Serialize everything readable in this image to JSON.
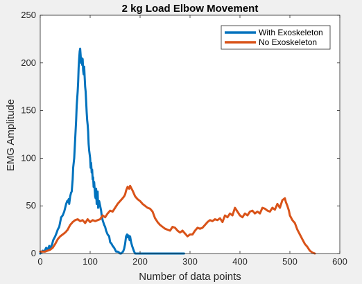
{
  "chart_data": {
    "type": "line",
    "title": "2 kg Load Elbow Movement",
    "xlabel": "Number of data points",
    "ylabel": "EMG Amplitude",
    "xlim": [
      0,
      600
    ],
    "ylim": [
      0,
      250
    ],
    "xticks": [
      "0",
      "100",
      "200",
      "300",
      "400",
      "500",
      "600"
    ],
    "yticks": [
      "0",
      "50",
      "100",
      "150",
      "200",
      "250"
    ],
    "grid": false,
    "legend_position": "top-right",
    "series": [
      {
        "name": "With Exoskeleton",
        "color": "#0072BD",
        "x": [
          0,
          5,
          8,
          12,
          15,
          18,
          20,
          24,
          26,
          30,
          33,
          35,
          38,
          40,
          42,
          45,
          48,
          50,
          52,
          54,
          55,
          57,
          58,
          60,
          62,
          63,
          65,
          66,
          68,
          70,
          72,
          73,
          75,
          76,
          77,
          78,
          79,
          80,
          81,
          82,
          83,
          84,
          85,
          86,
          87,
          88,
          89,
          90,
          91,
          92,
          93,
          94,
          95,
          96,
          97,
          98,
          100,
          101,
          102,
          103,
          104,
          105,
          106,
          107,
          108,
          110,
          111,
          112,
          113,
          115,
          116,
          118,
          120,
          122,
          123,
          125,
          128,
          130,
          132,
          135,
          138,
          140,
          143,
          145,
          148,
          150,
          152,
          155,
          158,
          160,
          162,
          164,
          166,
          168,
          170,
          172,
          174,
          175,
          177,
          179,
          180,
          182,
          184,
          186,
          188,
          190,
          200,
          220,
          250,
          270,
          288
        ],
        "y": [
          0,
          3,
          2,
          6,
          4,
          8,
          5,
          10,
          14,
          18,
          22,
          25,
          28,
          33,
          38,
          40,
          44,
          48,
          52,
          55,
          54,
          57,
          52,
          60,
          64,
          65,
          78,
          90,
          100,
          120,
          140,
          155,
          170,
          180,
          195,
          205,
          212,
          215,
          208,
          200,
          205,
          198,
          204,
          192,
          188,
          196,
          185,
          175,
          170,
          160,
          148,
          140,
          135,
          128,
          115,
          108,
          100,
          90,
          95,
          85,
          88,
          78,
          80,
          70,
          75,
          60,
          58,
          68,
          52,
          65,
          48,
          55,
          50,
          45,
          40,
          35,
          30,
          28,
          24,
          20,
          18,
          12,
          10,
          8,
          6,
          4,
          2,
          2,
          1,
          0,
          0,
          1,
          2,
          5,
          10,
          18,
          20,
          17,
          19,
          14,
          18,
          12,
          8,
          5,
          2,
          0,
          0,
          0,
          0,
          0,
          0
        ]
      },
      {
        "name": "No Exoskeleton",
        "color": "#D95319",
        "x": [
          0,
          10,
          20,
          25,
          30,
          35,
          40,
          45,
          50,
          55,
          60,
          65,
          70,
          75,
          80,
          85,
          90,
          95,
          100,
          105,
          110,
          115,
          120,
          125,
          130,
          135,
          140,
          145,
          150,
          155,
          160,
          165,
          168,
          170,
          172,
          175,
          178,
          180,
          182,
          185,
          190,
          195,
          200,
          205,
          210,
          215,
          220,
          225,
          230,
          235,
          240,
          245,
          250,
          255,
          260,
          265,
          270,
          275,
          280,
          285,
          290,
          295,
          300,
          305,
          310,
          315,
          320,
          325,
          330,
          335,
          340,
          345,
          350,
          355,
          360,
          365,
          370,
          375,
          380,
          385,
          390,
          395,
          400,
          405,
          410,
          415,
          420,
          425,
          430,
          435,
          440,
          445,
          450,
          455,
          460,
          465,
          470,
          475,
          480,
          485,
          490,
          492,
          495,
          498,
          500,
          505,
          510,
          515,
          520,
          525,
          530,
          535,
          540,
          545,
          550
        ],
        "y": [
          2,
          2,
          4,
          6,
          10,
          15,
          18,
          20,
          22,
          25,
          30,
          33,
          35,
          36,
          34,
          35,
          32,
          36,
          33,
          35,
          34,
          35,
          36,
          40,
          38,
          42,
          45,
          44,
          48,
          52,
          55,
          58,
          60,
          62,
          66,
          70,
          68,
          71,
          69,
          66,
          60,
          57,
          55,
          52,
          50,
          48,
          47,
          44,
          37,
          33,
          30,
          28,
          26,
          25,
          24,
          28,
          27,
          24,
          22,
          24,
          21,
          18,
          20,
          20,
          24,
          27,
          26,
          27,
          30,
          33,
          35,
          34,
          36,
          35,
          37,
          33,
          40,
          38,
          42,
          40,
          48,
          44,
          40,
          38,
          42,
          40,
          44,
          45,
          42,
          44,
          42,
          48,
          47,
          45,
          44,
          48,
          46,
          52,
          48,
          56,
          58,
          54,
          50,
          45,
          40,
          35,
          32,
          25,
          20,
          15,
          10,
          7,
          3,
          1,
          0
        ]
      }
    ]
  }
}
